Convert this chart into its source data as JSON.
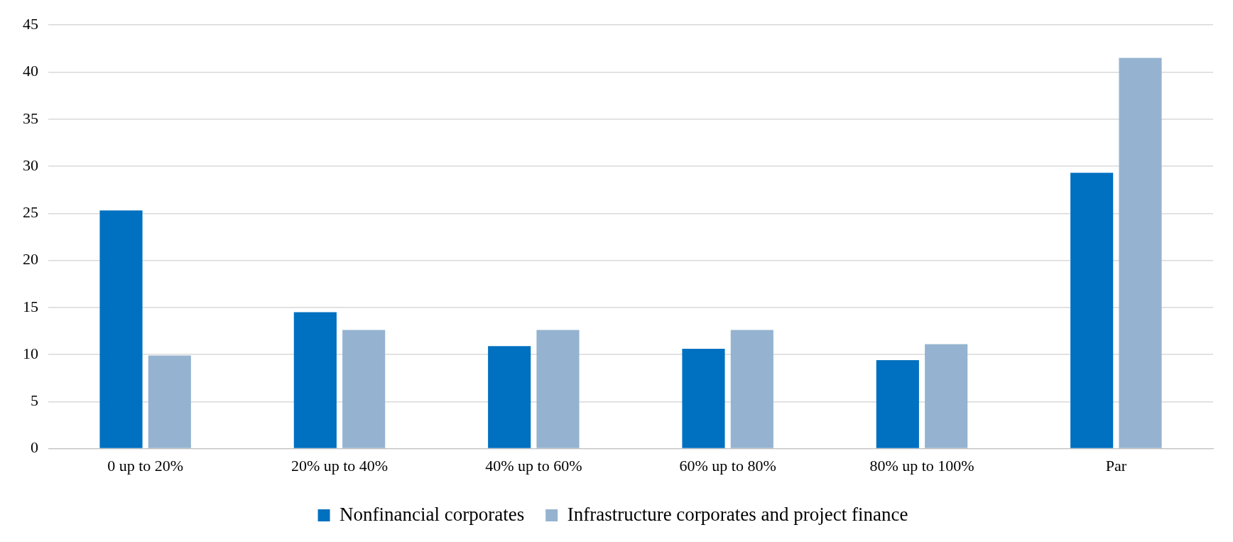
{
  "chart_data": {
    "type": "bar",
    "categories": [
      "0 up to 20%",
      "20% up to 40%",
      "40% up to 60%",
      "60% up to 80%",
      "80% up to 100%",
      "Par"
    ],
    "series": [
      {
        "name": "Nonfinancial corporates",
        "color": "#0070c0",
        "values": [
          25.3,
          14.5,
          10.9,
          10.6,
          9.4,
          29.3
        ]
      },
      {
        "name": "Infrastructure corporates and project finance",
        "color": "#95b3d0",
        "values": [
          9.9,
          12.6,
          12.6,
          12.6,
          11.1,
          41.5
        ]
      }
    ],
    "ylim": [
      0,
      45
    ],
    "yticks": [
      0,
      5,
      10,
      15,
      20,
      25,
      30,
      35,
      40,
      45
    ],
    "grid": "y",
    "legend": "bottom"
  }
}
